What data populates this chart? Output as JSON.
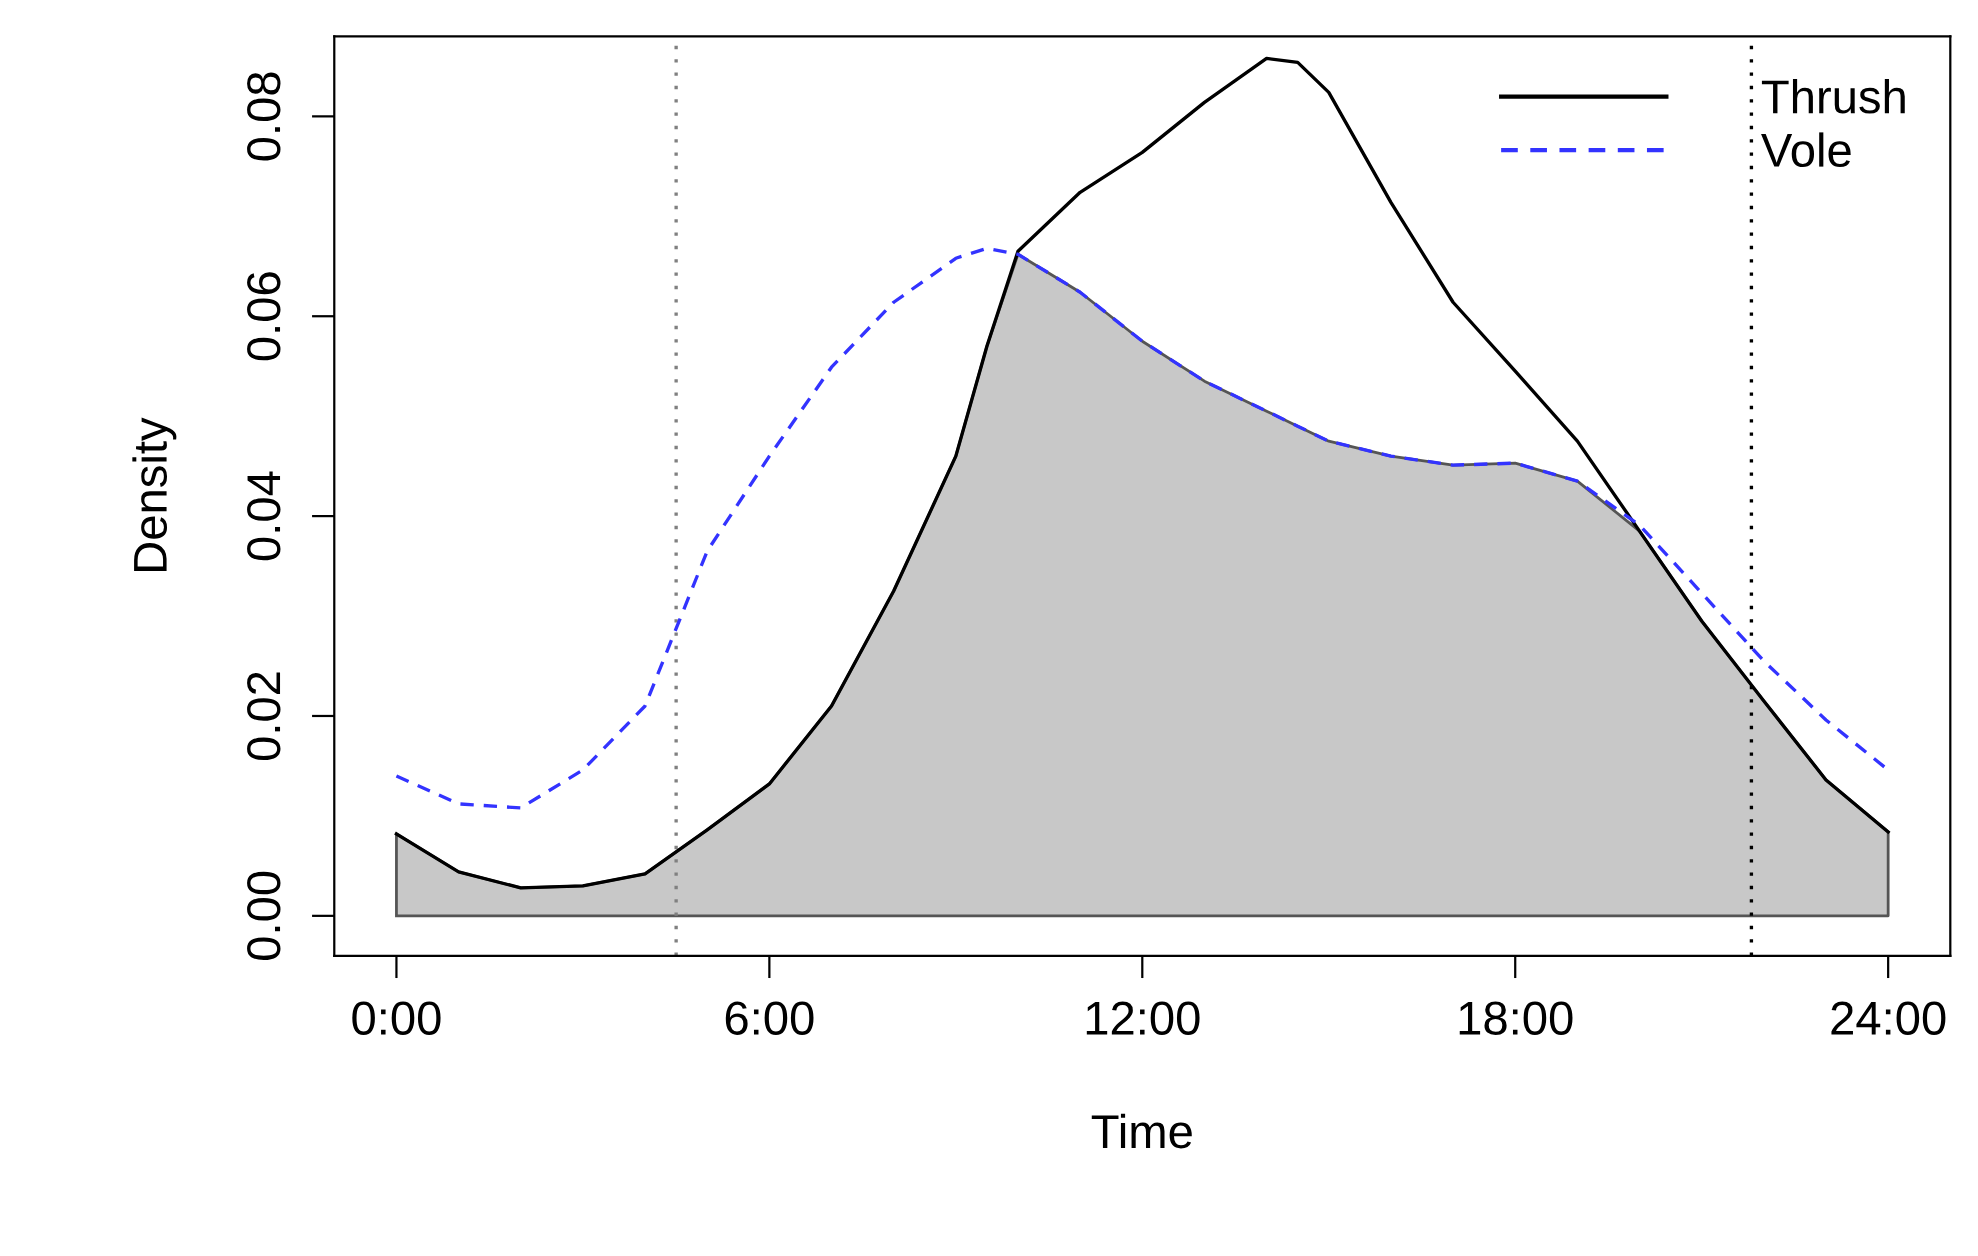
{
  "chart_data": {
    "type": "line",
    "xlabel": "Time",
    "ylabel": "Density",
    "x": [
      0,
      1,
      2,
      3,
      4,
      5,
      6,
      7,
      8,
      9,
      9.5,
      10,
      11,
      12,
      13,
      14,
      14.5,
      15,
      16,
      17,
      18,
      19,
      20,
      21,
      22,
      23,
      24
    ],
    "series": [
      {
        "type": "area",
        "color": "#c8c8c8",
        "values": [
          0.0082,
          0.0044,
          0.0028,
          0.003,
          0.0042,
          0.0086,
          0.0132,
          0.021,
          0.0325,
          0.046,
          0.057,
          0.0662,
          0.0624,
          0.0575,
          0.0535,
          0.0505,
          0.049,
          0.0475,
          0.046,
          0.0451,
          0.0453,
          0.0435,
          0.0385,
          0.0295,
          0.0215,
          0.0136,
          0.0084
        ]
      },
      {
        "name": "Thrush",
        "color": "#000000",
        "line_style": "solid",
        "values": [
          0.0082,
          0.0044,
          0.0028,
          0.003,
          0.0042,
          0.0086,
          0.0132,
          0.021,
          0.0325,
          0.046,
          0.057,
          0.0665,
          0.0724,
          0.0764,
          0.0814,
          0.0858,
          0.0854,
          0.0824,
          0.0714,
          0.0614,
          0.0545,
          0.0475,
          0.0385,
          0.0295,
          0.0215,
          0.0136,
          0.0084
        ]
      },
      {
        "name": "Vole",
        "color": "#3333ff",
        "line_style": "dashed",
        "values": [
          0.014,
          0.0112,
          0.0108,
          0.0146,
          0.021,
          0.0365,
          0.046,
          0.0549,
          0.0614,
          0.0658,
          0.0668,
          0.0662,
          0.0624,
          0.0575,
          0.0535,
          0.0505,
          0.049,
          0.0475,
          0.046,
          0.0451,
          0.0453,
          0.0435,
          0.0391,
          0.0323,
          0.0255,
          0.0196,
          0.0146
        ]
      }
    ],
    "xlim": [
      -1,
      25
    ],
    "ylim": [
      -0.004,
      0.088
    ],
    "xticks": [
      {
        "value": 0,
        "label": "0:00"
      },
      {
        "value": 6,
        "label": "6:00"
      },
      {
        "value": 12,
        "label": "12:00"
      },
      {
        "value": 18,
        "label": "18:00"
      },
      {
        "value": 24,
        "label": "24:00"
      }
    ],
    "yticks": [
      {
        "value": 0,
        "label": "0.00"
      },
      {
        "value": 0.02,
        "label": "0.02"
      },
      {
        "value": 0.04,
        "label": "0.04"
      },
      {
        "value": 0.06,
        "label": "0.06"
      },
      {
        "value": 0.08,
        "label": "0.08"
      }
    ],
    "ref_lines": [
      {
        "axis": "x",
        "value": 4.5,
        "color": "#808080",
        "line_style": "dotted"
      },
      {
        "axis": "x",
        "value": 21.8,
        "color": "#000000",
        "line_style": "dotted"
      }
    ],
    "legend": "top right",
    "grid": false
  }
}
